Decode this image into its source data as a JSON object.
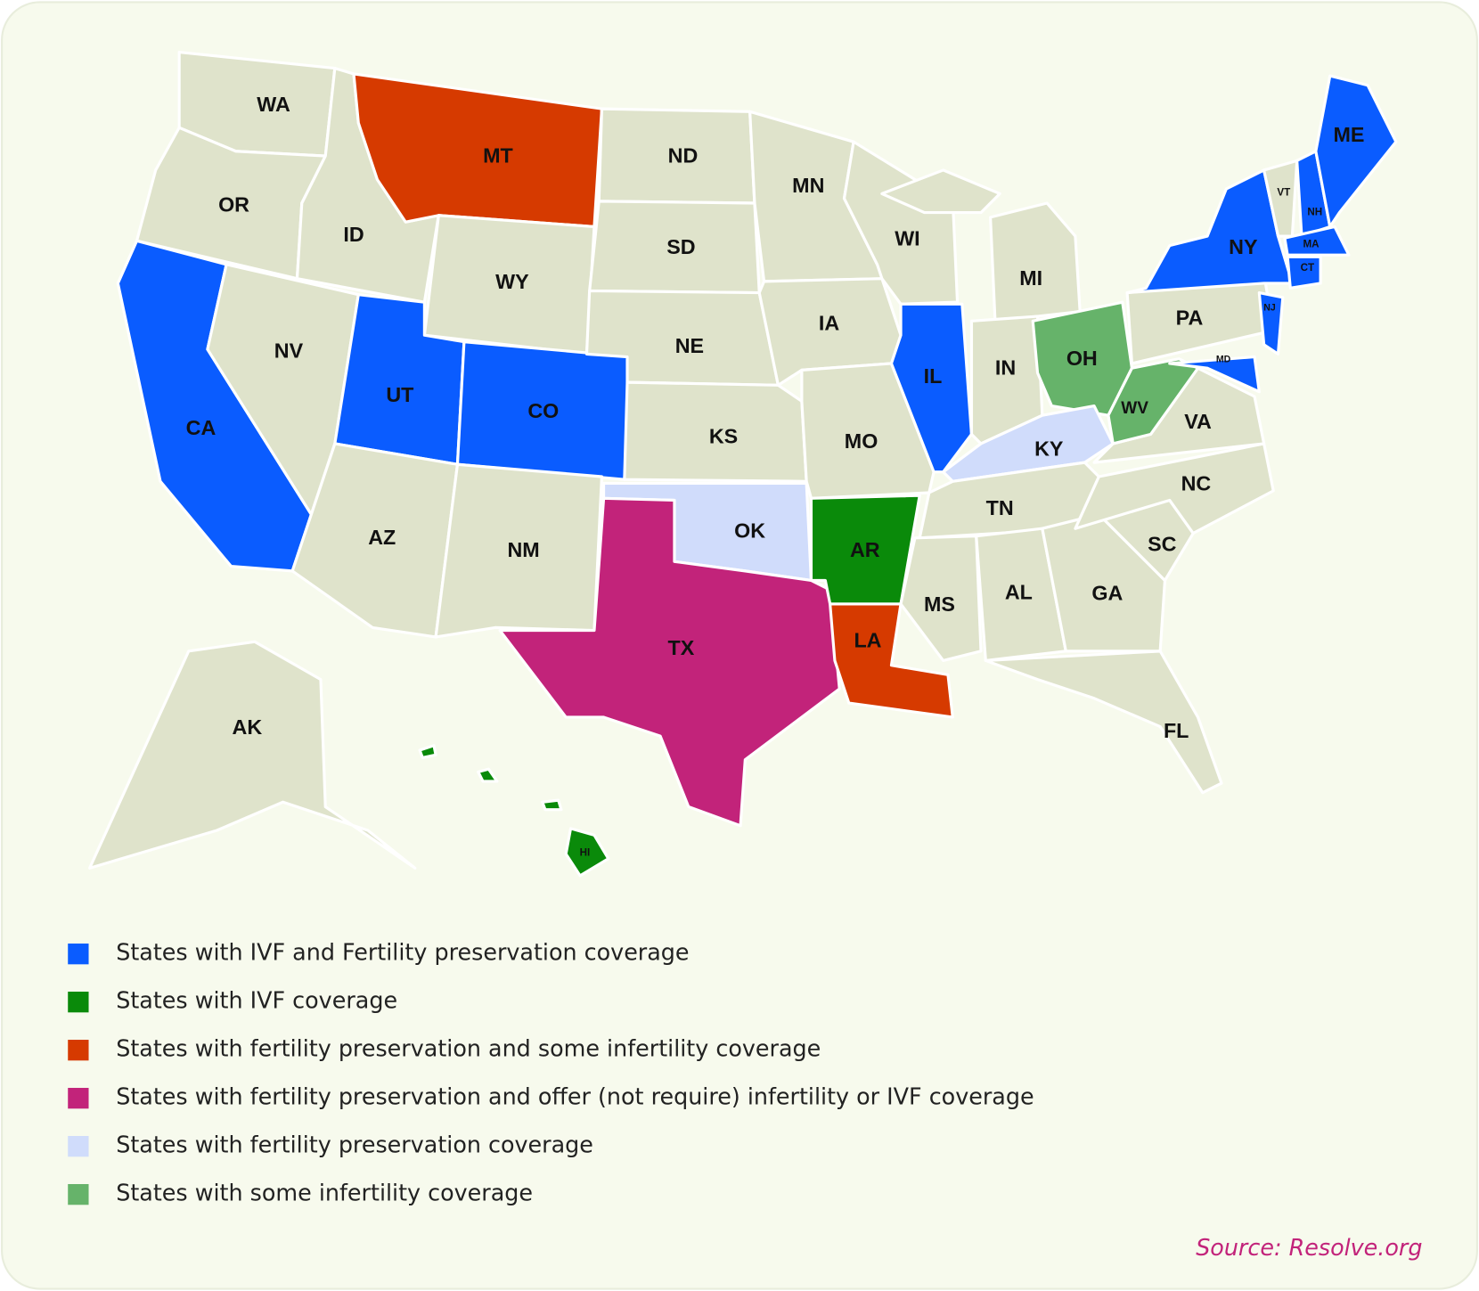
{
  "map": {
    "states": [
      {
        "label": "WA",
        "color": "#dfe3cb"
      },
      {
        "label": "OR",
        "color": "#dfe3cb"
      },
      {
        "label": "CA",
        "color": "#0a5cff"
      },
      {
        "label": "NV",
        "color": "#dfe3cb"
      },
      {
        "label": "ID",
        "color": "#dfe3cb"
      },
      {
        "label": "MT",
        "color": "#d63a00"
      },
      {
        "label": "WY",
        "color": "#dfe3cb"
      },
      {
        "label": "UT",
        "color": "#0a5cff"
      },
      {
        "label": "CO",
        "color": "#0a5cff"
      },
      {
        "label": "AZ",
        "color": "#dfe3cb"
      },
      {
        "label": "NM",
        "color": "#dfe3cb"
      },
      {
        "label": "ND",
        "color": "#dfe3cb"
      },
      {
        "label": "SD",
        "color": "#dfe3cb"
      },
      {
        "label": "NE",
        "color": "#dfe3cb"
      },
      {
        "label": "KS",
        "color": "#dfe3cb"
      },
      {
        "label": "OK",
        "color": "#d0dcfb"
      },
      {
        "label": "TX",
        "color": "#c2237a"
      },
      {
        "label": "MN",
        "color": "#dfe3cb"
      },
      {
        "label": "IA",
        "color": "#dfe3cb"
      },
      {
        "label": "MO",
        "color": "#dfe3cb"
      },
      {
        "label": "AR",
        "color": "#0a8a0a"
      },
      {
        "label": "LA",
        "color": "#d63a00"
      },
      {
        "label": "WI",
        "color": "#dfe3cb"
      },
      {
        "label": "IL",
        "color": "#0a5cff"
      },
      {
        "label": "MI",
        "color": "#dfe3cb"
      },
      {
        "label": "IN",
        "color": "#dfe3cb"
      },
      {
        "label": "OH",
        "color": "#66b36a"
      },
      {
        "label": "KY",
        "color": "#d0dcfb"
      },
      {
        "label": "TN",
        "color": "#dfe3cb"
      },
      {
        "label": "MS",
        "color": "#dfe3cb"
      },
      {
        "label": "AL",
        "color": "#dfe3cb"
      },
      {
        "label": "GA",
        "color": "#dfe3cb"
      },
      {
        "label": "FL",
        "color": "#dfe3cb"
      },
      {
        "label": "SC",
        "color": "#dfe3cb"
      },
      {
        "label": "NC",
        "color": "#dfe3cb"
      },
      {
        "label": "VA",
        "color": "#dfe3cb"
      },
      {
        "label": "WV",
        "color": "#66b36a"
      },
      {
        "label": "PA",
        "color": "#dfe3cb"
      },
      {
        "label": "NY",
        "color": "#0a5cff"
      },
      {
        "label": "VT",
        "color": "#dfe3cb"
      },
      {
        "label": "NH",
        "color": "#0a5cff"
      },
      {
        "label": "ME",
        "color": "#0a5cff"
      },
      {
        "label": "MA",
        "color": "#0a5cff"
      },
      {
        "label": "CT",
        "color": "#0a5cff"
      },
      {
        "label": "NJ",
        "color": "#0a5cff"
      },
      {
        "label": "MD",
        "color": "#0a5cff"
      },
      {
        "label": "AK",
        "color": "#dfe3cb"
      },
      {
        "label": "HI",
        "color": "#0a8a0a"
      }
    ],
    "legend": [
      {
        "label": "States with IVF and Fertility preservation coverage",
        "color": "#0a5cff"
      },
      {
        "label": "States with IVF coverage",
        "color": "#0a8a0a"
      },
      {
        "label": "States with fertility preservation and some infertility coverage",
        "color": "#d63a00"
      },
      {
        "label": "States with fertility preservation and offer (not require) infertility or IVF coverage",
        "color": "#c2237a"
      },
      {
        "label": "States with fertility preservation coverage",
        "color": "#d0dcfb"
      },
      {
        "label": "States with some infertility coverage",
        "color": "#66b36a"
      }
    ],
    "source": "Source: Resolve.org"
  }
}
